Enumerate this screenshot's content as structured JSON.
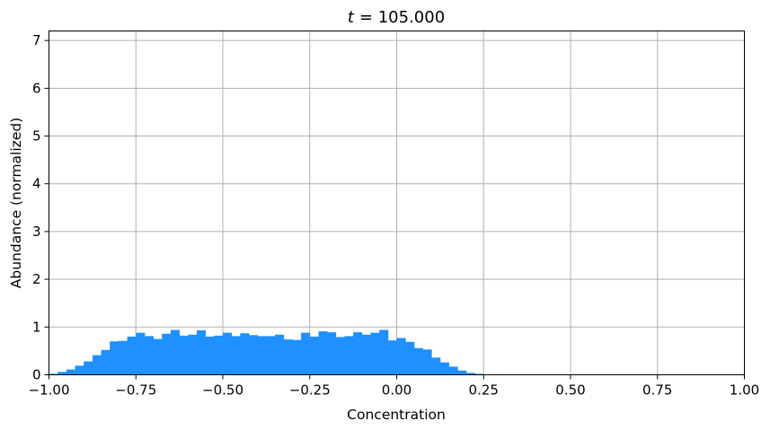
{
  "chart_data": {
    "type": "bar",
    "title_var": "t",
    "title_value": "= 105.000",
    "xlabel": "Concentration",
    "ylabel": "Abundance (normalized)",
    "xlim": [
      -1.0,
      1.0
    ],
    "ylim": [
      0,
      7.2
    ],
    "xticks": [
      -1.0,
      -0.75,
      -0.5,
      -0.25,
      0.0,
      0.25,
      0.5,
      0.75,
      1.0
    ],
    "xtick_labels": [
      "−1.00",
      "−0.75",
      "−0.50",
      "−0.25",
      "0.00",
      "0.25",
      "0.50",
      "0.75",
      "1.00"
    ],
    "yticks": [
      0,
      1,
      2,
      3,
      4,
      5,
      6,
      7
    ],
    "ytick_labels": [
      "0",
      "1",
      "2",
      "3",
      "4",
      "5",
      "6",
      "7"
    ],
    "grid": true,
    "bar_color": "#1e90ff",
    "bin_edges_start": -1.0,
    "bin_width": 0.025,
    "values": [
      0.02,
      0.06,
      0.11,
      0.19,
      0.28,
      0.41,
      0.52,
      0.7,
      0.71,
      0.8,
      0.88,
      0.81,
      0.75,
      0.86,
      0.94,
      0.82,
      0.84,
      0.93,
      0.8,
      0.82,
      0.88,
      0.81,
      0.87,
      0.83,
      0.81,
      0.81,
      0.84,
      0.74,
      0.73,
      0.88,
      0.8,
      0.91,
      0.89,
      0.79,
      0.81,
      0.89,
      0.84,
      0.88,
      0.94,
      0.72,
      0.77,
      0.69,
      0.56,
      0.53,
      0.36,
      0.26,
      0.17,
      0.09,
      0.04,
      0.02
    ]
  }
}
